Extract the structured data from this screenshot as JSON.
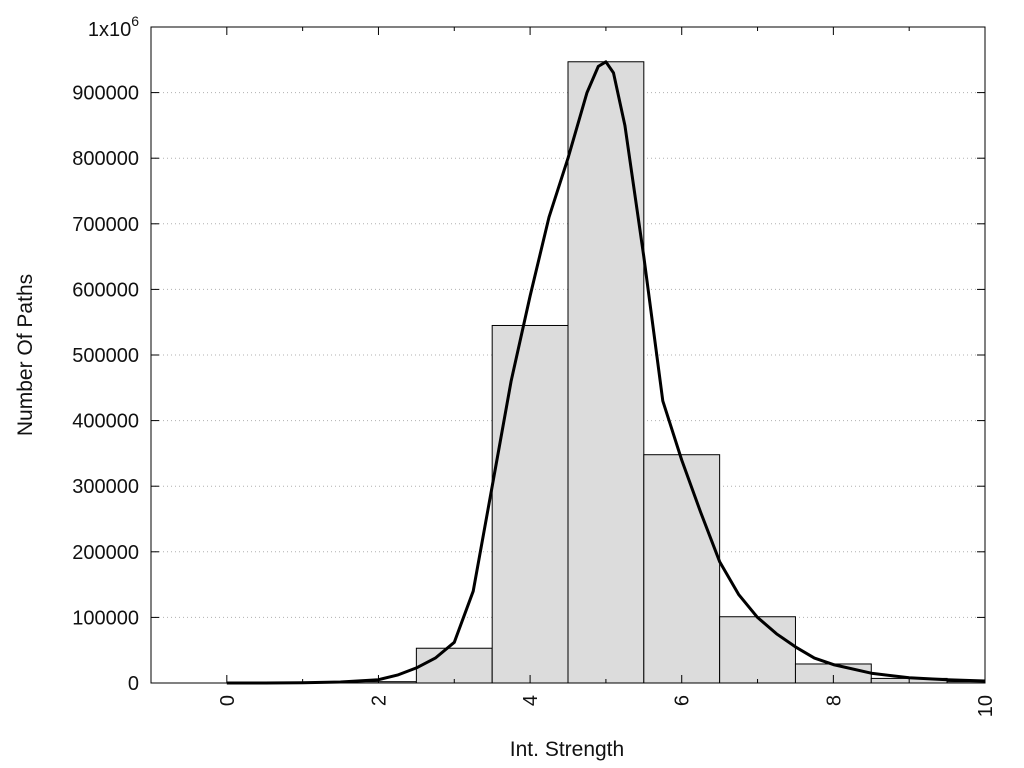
{
  "chart_data": {
    "type": "bar",
    "title": "",
    "xlabel": "Int. Strength",
    "ylabel": "Number Of Paths",
    "xlim": [
      -1,
      10
    ],
    "ylim": [
      0,
      1000000
    ],
    "x_ticks": [
      0,
      2,
      4,
      6,
      8,
      10
    ],
    "y_ticks": [
      {
        "value": 0,
        "label": "0"
      },
      {
        "value": 100000,
        "label": "100000"
      },
      {
        "value": 200000,
        "label": "200000"
      },
      {
        "value": 300000,
        "label": "300000"
      },
      {
        "value": 400000,
        "label": "400000"
      },
      {
        "value": 500000,
        "label": "500000"
      },
      {
        "value": 600000,
        "label": "600000"
      },
      {
        "value": 700000,
        "label": "700000"
      },
      {
        "value": 800000,
        "label": "800000"
      },
      {
        "value": 900000,
        "label": "900000"
      },
      {
        "value": 1000000,
        "label": "1x10",
        "sup": "6"
      }
    ],
    "grid": "horizontal-dotted",
    "bar_width": 1,
    "bar_color": "#dcdcdc",
    "bar_edge": "#000000",
    "curve_color": "#000000",
    "bars": [
      {
        "x": 0,
        "value": 0
      },
      {
        "x": 1,
        "value": 0
      },
      {
        "x": 2,
        "value": 2000
      },
      {
        "x": 3,
        "value": 53000
      },
      {
        "x": 4,
        "value": 545000
      },
      {
        "x": 5,
        "value": 947000
      },
      {
        "x": 6,
        "value": 348000
      },
      {
        "x": 7,
        "value": 101000
      },
      {
        "x": 8,
        "value": 29000
      },
      {
        "x": 9,
        "value": 7000
      },
      {
        "x": 10,
        "value": 2000
      }
    ],
    "curve": {
      "x": [
        0,
        0.5,
        1,
        1.5,
        2,
        2.25,
        2.5,
        2.75,
        3,
        3.25,
        3.5,
        3.75,
        4,
        4.25,
        4.5,
        4.75,
        4.9,
        5,
        5.1,
        5.25,
        5.5,
        5.75,
        6,
        6.25,
        6.5,
        6.75,
        7,
        7.25,
        7.5,
        7.75,
        8,
        8.5,
        9,
        9.5,
        10
      ],
      "y": [
        0,
        0,
        500,
        1500,
        5000,
        12000,
        23000,
        38000,
        62000,
        140000,
        300000,
        460000,
        590000,
        710000,
        800000,
        900000,
        940000,
        947000,
        930000,
        850000,
        650000,
        430000,
        340000,
        260000,
        185000,
        135000,
        100000,
        75000,
        55000,
        38000,
        28000,
        15000,
        8000,
        5000,
        3000
      ]
    }
  }
}
